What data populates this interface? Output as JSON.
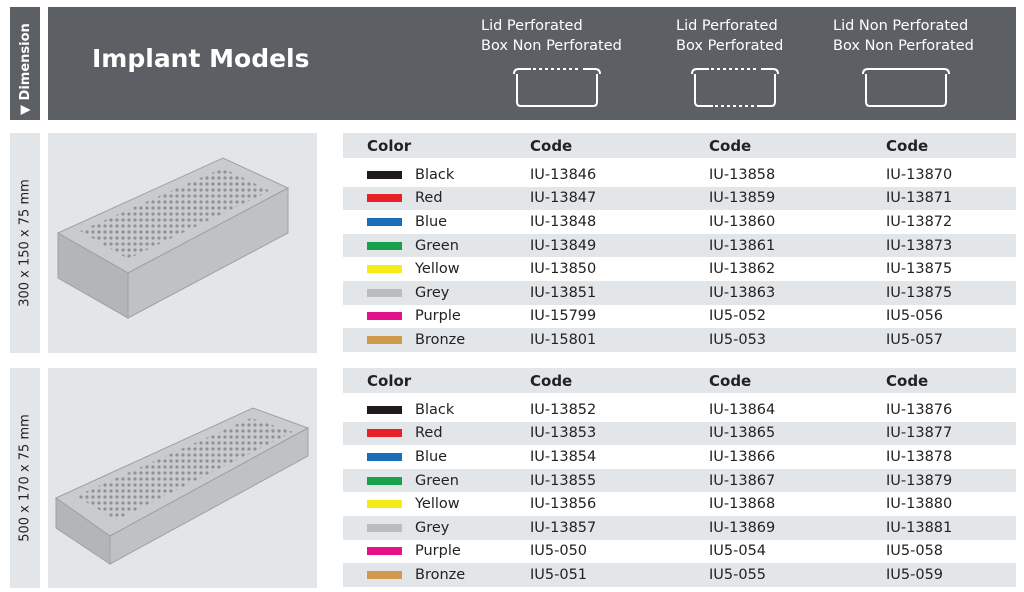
{
  "header": {
    "side_label": "Dimension",
    "title": "Implant Models",
    "variants": [
      {
        "line1": "Lid Perforated",
        "line2": "Box Non Perforated",
        "icon": "box-lid-perforated-icon"
      },
      {
        "line1": "Lid Perforated",
        "line2": "Box Perforated",
        "icon": "box-both-perforated-icon"
      },
      {
        "line1": "Lid Non Perforated",
        "line2": "Box Non Perforated",
        "icon": "box-non-perforated-icon"
      }
    ]
  },
  "columns": {
    "color": "Color",
    "code": "Code"
  },
  "sections": [
    {
      "dimension": "300 x 150 x 75 mm",
      "rows": [
        {
          "color": "Black",
          "hex": "#1f1b1c",
          "codes": [
            "IU-13846",
            "IU-13858",
            "IU-13870"
          ]
        },
        {
          "color": "Red",
          "hex": "#e8202a",
          "codes": [
            "IU-13847",
            "IU-13859",
            "IU-13871"
          ]
        },
        {
          "color": "Blue",
          "hex": "#1b6db5",
          "codes": [
            "IU-13848",
            "IU-13860",
            "IU-13872"
          ]
        },
        {
          "color": "Green",
          "hex": "#18a04a",
          "codes": [
            "IU-13849",
            "IU-13861",
            "IU-13873"
          ]
        },
        {
          "color": "Yellow",
          "hex": "#f5ec17",
          "codes": [
            "IU-13850",
            "IU-13862",
            "IU-13875"
          ]
        },
        {
          "color": "Grey",
          "hex": "#bcbcbe",
          "codes": [
            "IU-13851",
            "IU-13863",
            "IU-13875"
          ]
        },
        {
          "color": "Purple",
          "hex": "#e4128a",
          "codes": [
            "IU-15799",
            "IU5-052",
            "IU5-056"
          ]
        },
        {
          "color": "Bronze",
          "hex": "#cf9a4e",
          "codes": [
            "IU-15801",
            "IU5-053",
            "IU5-057"
          ]
        }
      ]
    },
    {
      "dimension": "500 x 170 x 75 mm",
      "rows": [
        {
          "color": "Black",
          "hex": "#1f1b1c",
          "codes": [
            "IU-13852",
            "IU-13864",
            "IU-13876"
          ]
        },
        {
          "color": "Red",
          "hex": "#e8202a",
          "codes": [
            "IU-13853",
            "IU-13865",
            "IU-13877"
          ]
        },
        {
          "color": "Blue",
          "hex": "#1b6db5",
          "codes": [
            "IU-13854",
            "IU-13866",
            "IU-13878"
          ]
        },
        {
          "color": "Green",
          "hex": "#18a04a",
          "codes": [
            "IU-13855",
            "IU-13867",
            "IU-13879"
          ]
        },
        {
          "color": "Yellow",
          "hex": "#f5ec17",
          "codes": [
            "IU-13856",
            "IU-13868",
            "IU-13880"
          ]
        },
        {
          "color": "Grey",
          "hex": "#bcbcbe",
          "codes": [
            "IU-13857",
            "IU-13869",
            "IU-13881"
          ]
        },
        {
          "color": "Purple",
          "hex": "#e4128a",
          "codes": [
            "IU5-050",
            "IU5-054",
            "IU5-058"
          ]
        },
        {
          "color": "Bronze",
          "hex": "#cf9a4e",
          "codes": [
            "IU5-051",
            "IU5-055",
            "IU5-059"
          ]
        }
      ]
    }
  ]
}
